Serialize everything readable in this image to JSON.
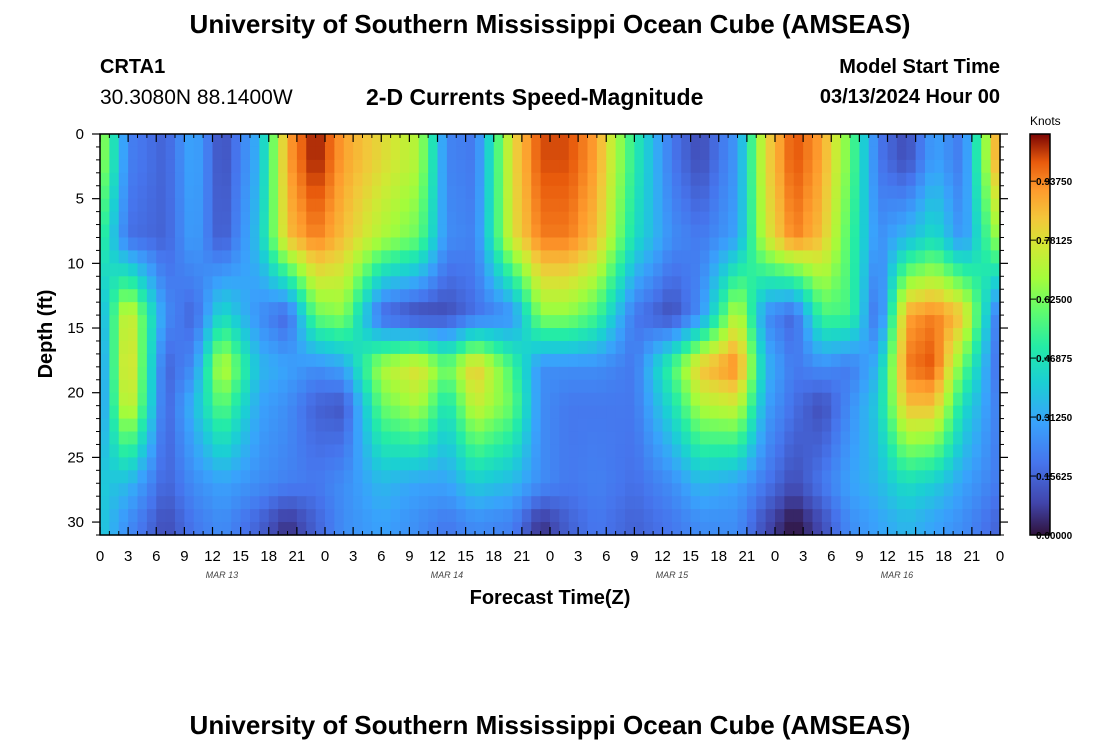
{
  "header": {
    "title": "University of Southern Mississippi Ocean Cube (AMSEAS)",
    "station_id": "CRTA1",
    "station_coords": "30.3080N  88.1400W",
    "plot_title": "2-D Currents Speed-Magnitude",
    "model_start_label": "Model Start Time",
    "model_start_value": "03/13/2024 Hour 00"
  },
  "footer": {
    "title": "University of Southern Mississippi Ocean Cube (AMSEAS)"
  },
  "chart_data": {
    "type": "heatmap",
    "title": "2-D Currents Speed-Magnitude",
    "xlabel": "Forecast Time(Z)",
    "ylabel": "Depth (ft)",
    "x_range_hours": [
      0,
      96
    ],
    "y_range_ft": [
      0,
      31
    ],
    "y_ticks": [
      "0",
      "5",
      "10",
      "15",
      "20",
      "25",
      "30"
    ],
    "x_ticks": [
      "0",
      "3",
      "6",
      "9",
      "12",
      "15",
      "18",
      "21",
      "0",
      "3",
      "6",
      "9",
      "12",
      "15",
      "18",
      "21",
      "0",
      "3",
      "6",
      "9",
      "12",
      "15",
      "18",
      "21",
      "0",
      "3",
      "6",
      "9",
      "12",
      "15",
      "18",
      "21",
      "0"
    ],
    "date_labels": [
      "MAR 13",
      "MAR 14",
      "MAR 15",
      "MAR 16"
    ],
    "colorbar": {
      "label": "Knots",
      "range": [
        0,
        1.0625
      ],
      "tick_labels": [
        "0.00000",
        "0.15625",
        "0.31250",
        "0.46875",
        "0.62500",
        "0.78125",
        "0.93750"
      ]
    },
    "grid": false,
    "approx_field": {
      "description": "estimated current speed (knots) at sampled hours and depths",
      "depths_ft": [
        2,
        8,
        14,
        18,
        21,
        27,
        30
      ],
      "hours": [
        0,
        3,
        7,
        10,
        13,
        17,
        20,
        23,
        26,
        30,
        34,
        37,
        40,
        44,
        47,
        50,
        53,
        57,
        61,
        64,
        68,
        71,
        74,
        77,
        80,
        83,
        86,
        89,
        92,
        96
      ],
      "speeds": [
        [
          0.7,
          0.22,
          0.15,
          0.32,
          0.1,
          0.34,
          0.9,
          1.05,
          0.9,
          0.8,
          0.7,
          0.23,
          0.2,
          0.8,
          1.0,
          1.0,
          0.9,
          0.5,
          0.2,
          0.1,
          0.28,
          0.8,
          1.0,
          0.9,
          0.6,
          0.2,
          0.1,
          0.3,
          0.2,
          0.95
        ],
        [
          0.55,
          0.18,
          0.15,
          0.3,
          0.12,
          0.38,
          0.85,
          0.95,
          0.85,
          0.7,
          0.6,
          0.25,
          0.22,
          0.78,
          0.95,
          0.95,
          0.85,
          0.45,
          0.25,
          0.2,
          0.3,
          0.75,
          0.95,
          0.85,
          0.55,
          0.25,
          0.35,
          0.45,
          0.25,
          0.7
        ],
        [
          0.3,
          0.8,
          0.25,
          0.15,
          0.45,
          0.25,
          0.15,
          0.6,
          0.65,
          0.15,
          0.08,
          0.1,
          0.18,
          0.25,
          0.65,
          0.65,
          0.55,
          0.2,
          0.1,
          0.25,
          0.75,
          0.25,
          0.15,
          0.55,
          0.55,
          0.15,
          0.9,
          0.95,
          0.85,
          0.15
        ],
        [
          0.25,
          0.85,
          0.15,
          0.25,
          0.75,
          0.35,
          0.3,
          0.25,
          0.3,
          0.7,
          0.8,
          0.6,
          0.85,
          0.55,
          0.25,
          0.25,
          0.25,
          0.2,
          0.55,
          0.85,
          0.95,
          0.35,
          0.2,
          0.25,
          0.2,
          0.35,
          0.95,
          1.0,
          0.6,
          0.15
        ],
        [
          0.25,
          0.8,
          0.15,
          0.35,
          0.6,
          0.3,
          0.25,
          0.15,
          0.12,
          0.6,
          0.7,
          0.45,
          0.75,
          0.6,
          0.25,
          0.2,
          0.2,
          0.2,
          0.45,
          0.7,
          0.75,
          0.3,
          0.18,
          0.1,
          0.25,
          0.4,
          0.85,
          0.85,
          0.45,
          0.2
        ],
        [
          0.4,
          0.35,
          0.15,
          0.25,
          0.3,
          0.25,
          0.22,
          0.2,
          0.25,
          0.35,
          0.3,
          0.3,
          0.4,
          0.35,
          0.25,
          0.2,
          0.22,
          0.18,
          0.25,
          0.35,
          0.3,
          0.2,
          0.1,
          0.2,
          0.3,
          0.35,
          0.45,
          0.4,
          0.3,
          0.2
        ],
        [
          0.4,
          0.25,
          0.1,
          0.2,
          0.25,
          0.15,
          0.05,
          0.15,
          0.25,
          0.3,
          0.25,
          0.2,
          0.25,
          0.22,
          0.05,
          0.15,
          0.2,
          0.15,
          0.2,
          0.25,
          0.25,
          0.1,
          0.0,
          0.1,
          0.25,
          0.3,
          0.35,
          0.3,
          0.25,
          0.15
        ]
      ]
    }
  }
}
